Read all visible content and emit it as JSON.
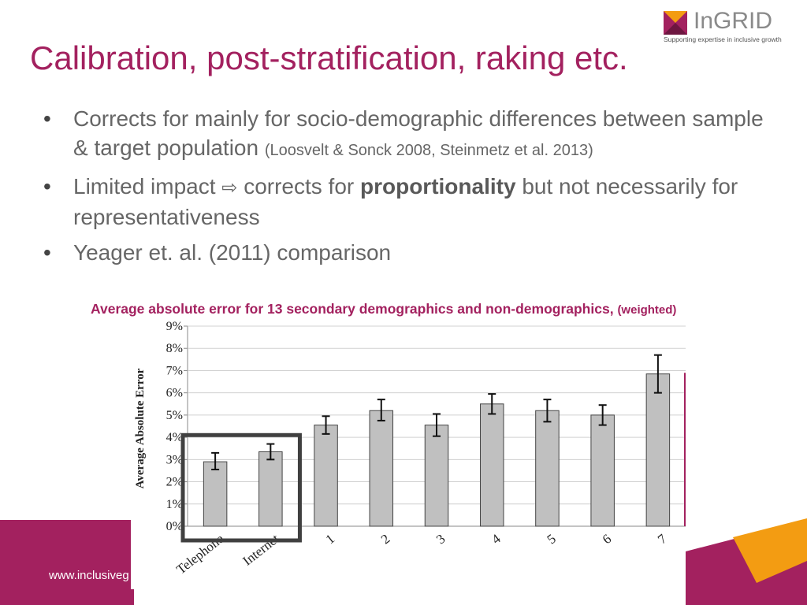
{
  "header": {
    "logo_text": "InGRID",
    "logo_tagline": "Supporting expertise in inclusive growth",
    "title": "Calibration, post-stratification, raking etc."
  },
  "bullets": [
    {
      "part1": "Corrects for mainly for socio-demographic differences between sample & target  population",
      "part2": "(Loosvelt & Sonck 2008, Steinmetz et al. 2013)"
    },
    {
      "part1": "Limited impact",
      "arrow": "⇨",
      "part2": "corrects for",
      "bold": "proportionality",
      "part3": "but not necessarily for representativeness"
    },
    {
      "part1": "Yeager et. al. (2011) comparison"
    }
  ],
  "chart_caption": {
    "main": "Average absolute error for 13 secondary demographics and non-demographics,",
    "sub": "(weighted)"
  },
  "footer": {
    "url": "www.inclusiveg"
  },
  "colors": {
    "accent": "#a3215f",
    "bar_fill": "#c0c0c0",
    "bar_stroke": "#444444",
    "highlight_box": "#404040",
    "orange": "#f39c12"
  },
  "chart_data": {
    "type": "bar",
    "ylabel": "Average Absolute Error",
    "xlabel": "",
    "categories": [
      "Telephone",
      "Internet",
      "1",
      "2",
      "3",
      "4",
      "5",
      "6",
      "7"
    ],
    "values": [
      2.9,
      3.35,
      4.55,
      5.2,
      4.55,
      5.5,
      5.2,
      5.0,
      6.85
    ],
    "error_low": [
      2.55,
      3.0,
      4.15,
      4.75,
      4.05,
      5.05,
      4.7,
      4.55,
      6.0
    ],
    "error_high": [
      3.3,
      3.7,
      4.95,
      5.7,
      5.05,
      5.95,
      5.7,
      5.45,
      7.7
    ],
    "ylim": [
      0,
      9
    ],
    "yticks": [
      "0%",
      "1%",
      "2%",
      "3%",
      "4%",
      "5%",
      "6%",
      "7%",
      "8%",
      "9%"
    ],
    "grid": true,
    "highlighted_categories": [
      "Telephone",
      "Internet"
    ]
  }
}
